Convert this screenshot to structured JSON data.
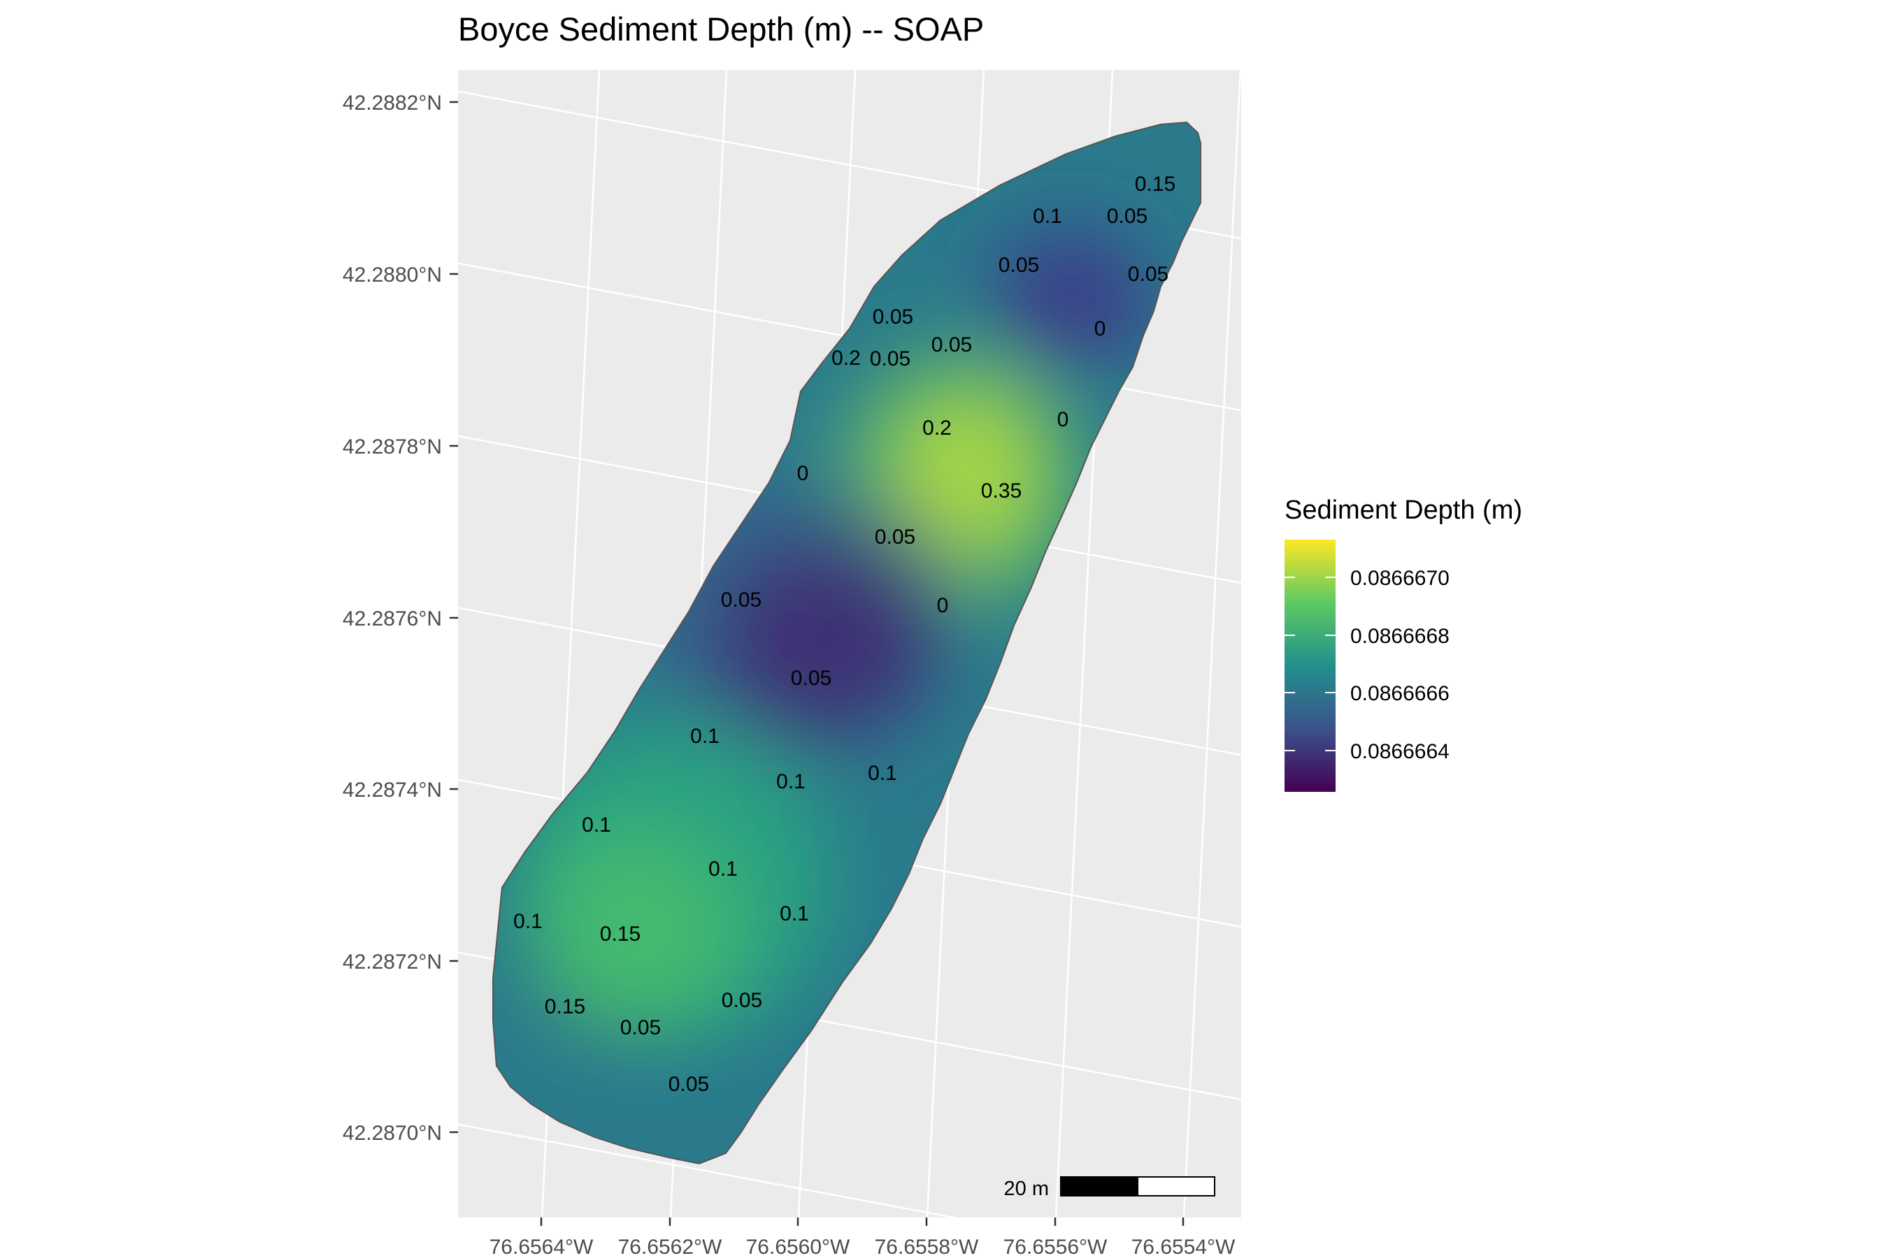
{
  "title": "Boyce Sediment Depth (m) -- SOAP",
  "colors": {
    "panel_bg": "#ebebeb",
    "grid": "#ffffff",
    "outline": "#555555",
    "tick": "#333333",
    "viridis": [
      "#440154",
      "#3b528b",
      "#21908c",
      "#5dc963",
      "#fde725"
    ]
  },
  "axes": {
    "y_labels": [
      "42.2882°N",
      "42.2880°N",
      "42.2878°N",
      "42.2876°N",
      "42.2874°N",
      "42.2872°N",
      "42.2870°N"
    ],
    "x_labels": [
      "76.6564°W",
      "76.6562°W",
      "76.6560°W",
      "76.6558°W",
      "76.6556°W",
      "76.6554°W"
    ]
  },
  "legend": {
    "title": "Sediment Depth (m)",
    "labels": [
      "0.0866670",
      "0.0866668",
      "0.0866666",
      "0.0866664"
    ]
  },
  "scale_bar": {
    "label": "20 m"
  },
  "sample_points": [
    {
      "label": "0.15"
    },
    {
      "label": "0.1"
    },
    {
      "label": "0.05"
    },
    {
      "label": "0.05"
    },
    {
      "label": "0.05"
    },
    {
      "label": "0.05"
    },
    {
      "label": "0"
    },
    {
      "label": "0.05"
    },
    {
      "label": "0.05"
    },
    {
      "label": "0.2"
    },
    {
      "label": "0.2"
    },
    {
      "label": "0"
    },
    {
      "label": "0.35"
    },
    {
      "label": "0"
    },
    {
      "label": "0.05"
    },
    {
      "label": "0.05"
    },
    {
      "label": "0"
    },
    {
      "label": "0.05"
    },
    {
      "label": "0.1"
    },
    {
      "label": "0.1"
    },
    {
      "label": "0.1"
    },
    {
      "label": "0.1"
    },
    {
      "label": "0.1"
    },
    {
      "label": "0.1"
    },
    {
      "label": "0.1"
    },
    {
      "label": "0.15"
    },
    {
      "label": "0.15"
    },
    {
      "label": "0.05"
    },
    {
      "label": "0.05"
    },
    {
      "label": "0.05"
    }
  ]
}
